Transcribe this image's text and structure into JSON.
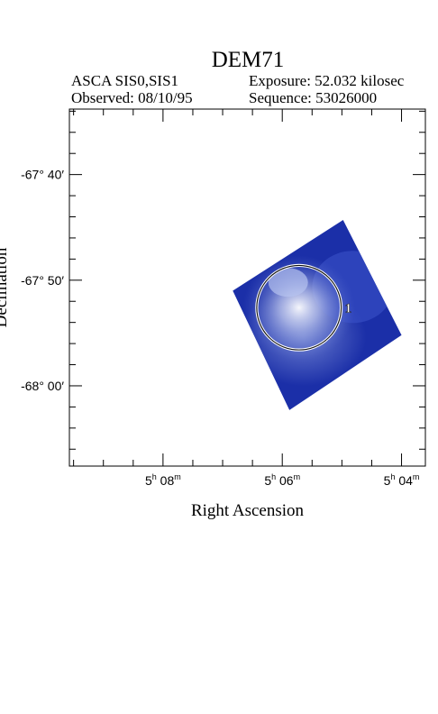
{
  "header": {
    "title": "DEM71",
    "instrument": "ASCA SIS0,SIS1",
    "observed": "Observed: 08/10/95",
    "exposure": "Exposure: 52.032 kilosec",
    "sequence": "Sequence: 53026000"
  },
  "chart_data": {
    "type": "heatmap",
    "title": "DEM71",
    "xlabel": "Right Ascension",
    "ylabel": "Declination",
    "x_ticks": [
      {
        "label_h": "5",
        "label_m": "08",
        "ra_min": 8.0
      },
      {
        "label_h": "5",
        "label_m": "06",
        "ra_min": 6.0
      },
      {
        "label_h": "5",
        "label_m": "04",
        "ra_min": 4.0
      }
    ],
    "y_ticks": [
      {
        "label": "-67° 40′",
        "dec_arcmin": -4060
      },
      {
        "label": "-67° 50′",
        "dec_arcmin": -4070
      },
      {
        "label": "-68° 00′",
        "dec_arcmin": -4080
      }
    ],
    "xlim_ra_min": [
      9.57,
      3.6
    ],
    "ylim_dec_arcmin": [
      -4053.8,
      -4087.6
    ],
    "grid": false,
    "image_colormap": [
      "#1b2fa8",
      "#3a52c8",
      "#8e9fe2",
      "#e9ecf6"
    ],
    "regions": [
      {
        "id": "1",
        "shape": "circle",
        "ra_min": 5.72,
        "dec_arcmin": -4072.6,
        "radius_arcmin": 4.0
      }
    ],
    "exposure_field": {
      "corners": [
        {
          "ra_min": 6.83,
          "dec_arcmin": -4071.0
        },
        {
          "ra_min": 4.98,
          "dec_arcmin": -4064.3
        },
        {
          "ra_min": 4.0,
          "dec_arcmin": -4075.2
        },
        {
          "ra_min": 5.88,
          "dec_arcmin": -4082.3
        }
      ]
    }
  }
}
